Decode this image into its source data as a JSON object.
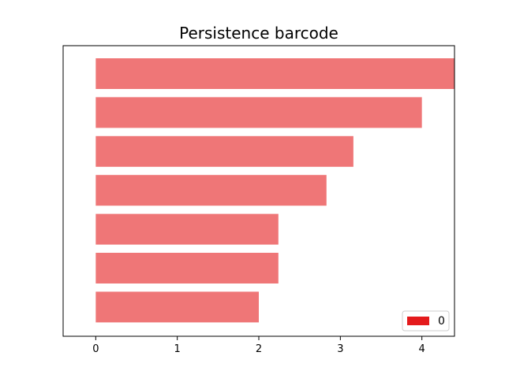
{
  "chart_data": {
    "type": "bar",
    "orientation": "horizontal",
    "title": "Persistence barcode",
    "xlabel": "",
    "ylabel": "",
    "xlim": [
      -0.4,
      4.4
    ],
    "xticks": [
      0,
      1,
      2,
      3,
      4
    ],
    "grid": false,
    "show_y_ticks": false,
    "legend_position": "lower-right",
    "series": [
      {
        "name": "0",
        "color": "#e41a1c",
        "bar_alpha": 0.6,
        "intervals": [
          {
            "birth": 0,
            "death": 4.4,
            "infinite": true
          },
          {
            "birth": 0,
            "death": 4.0
          },
          {
            "birth": 0,
            "death": 3.16
          },
          {
            "birth": 0,
            "death": 2.83
          },
          {
            "birth": 0,
            "death": 2.24
          },
          {
            "birth": 0,
            "death": 2.24
          },
          {
            "birth": 0,
            "death": 2.0
          }
        ]
      }
    ]
  }
}
